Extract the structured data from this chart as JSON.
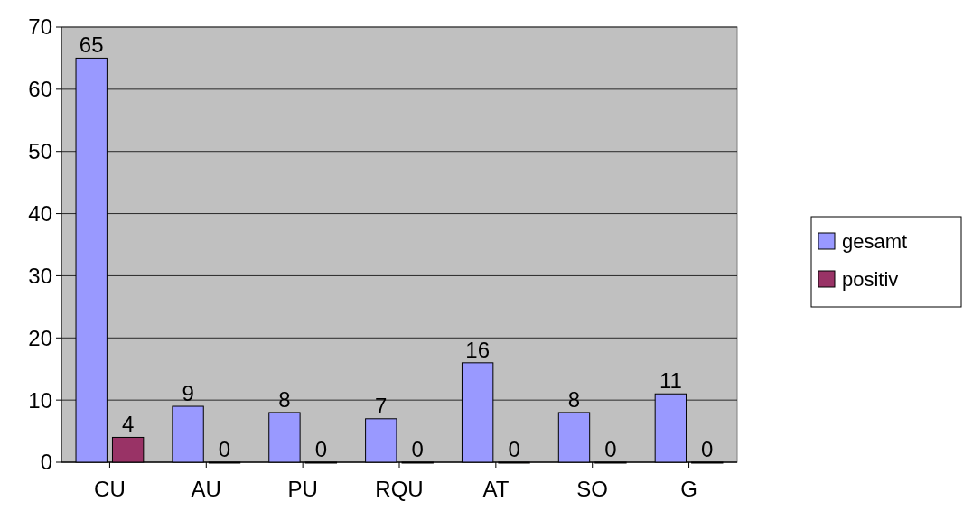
{
  "chart_data": {
    "type": "bar",
    "categories": [
      "CU",
      "AU",
      "PU",
      "RQU",
      "AT",
      "SO",
      "G"
    ],
    "series": [
      {
        "name": "gesamt",
        "color": "#9999ff",
        "values": [
          65,
          9,
          8,
          7,
          16,
          8,
          11
        ]
      },
      {
        "name": "positiv",
        "color": "#993366",
        "values": [
          4,
          0,
          0,
          0,
          0,
          0,
          0
        ]
      }
    ],
    "ylim": [
      0,
      70
    ],
    "yticks": [
      0,
      10,
      20,
      30,
      40,
      50,
      60,
      70
    ],
    "grid": "y",
    "legend": "right",
    "data_labels": true
  }
}
